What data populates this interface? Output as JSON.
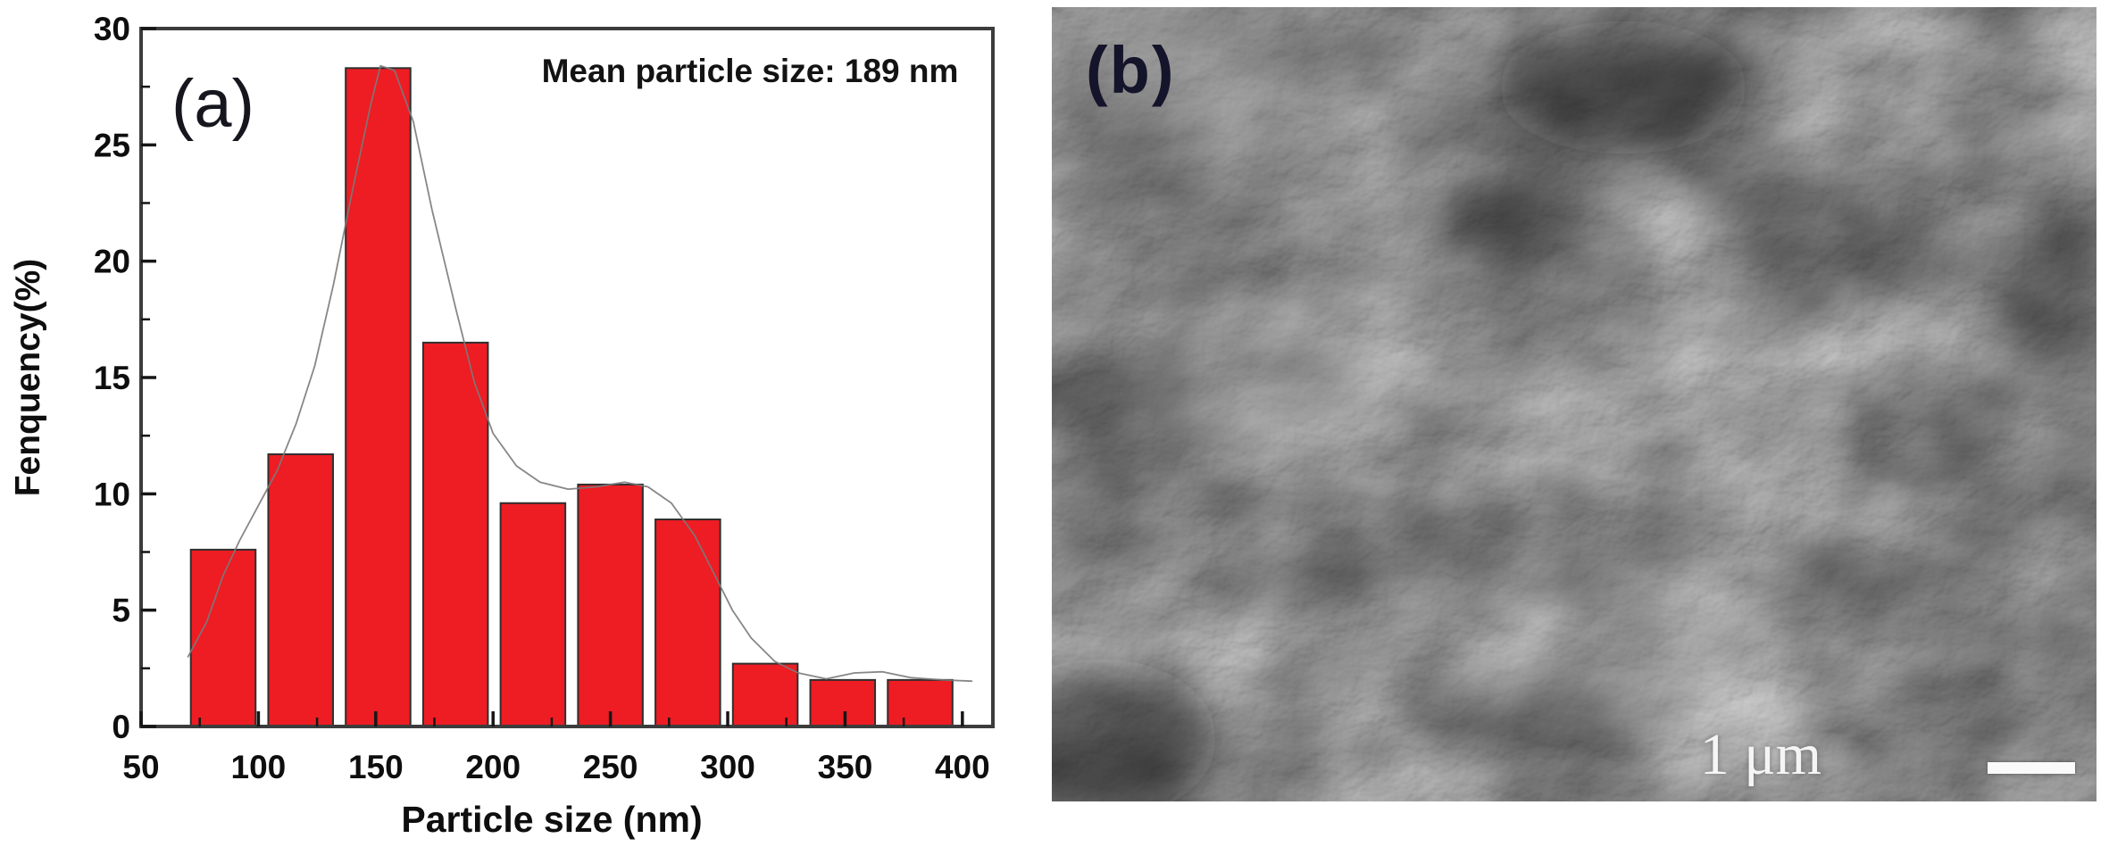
{
  "figure": {
    "panel_a": {
      "label": "(a)",
      "annotation": "Mean particle size: 189 nm",
      "x_axis_title": "Particle size (nm)",
      "y_axis_title": "Fenquency(%)"
    },
    "panel_b": {
      "label": "(b)",
      "scale_text": "1 μm",
      "scale_bar_color": "#fafafa",
      "image_type": "SEM micrograph of agglomerated particles"
    }
  },
  "chart_data": {
    "type": "bar",
    "title": "",
    "xlabel": "Particle size (nm)",
    "ylabel": "Fenquency(%)",
    "annotation": "Mean particle size: 189 nm",
    "xlim": [
      50,
      413
    ],
    "ylim": [
      0,
      30
    ],
    "x_ticks": [
      50,
      100,
      150,
      200,
      250,
      300,
      350,
      400
    ],
    "y_ticks": [
      0,
      5,
      10,
      15,
      20,
      25,
      30
    ],
    "x_minor_step": 25,
    "y_minor_step": 2.5,
    "grid": false,
    "legend": "none",
    "bar_color": "#ee1c23",
    "bar_edge_color": "#2f2f2f",
    "curve_color": "#7a7a7a",
    "axis_color": "#3c3c3c",
    "bin_half_width_nm": 13.8,
    "categories": [
      85,
      118,
      151,
      184,
      217,
      250,
      283,
      316,
      349,
      382
    ],
    "values": [
      7.6,
      11.7,
      28.3,
      16.5,
      9.6,
      10.4,
      8.9,
      2.7,
      2.0,
      2.0
    ],
    "curve_points": [
      [
        70,
        3.0
      ],
      [
        78,
        4.5
      ],
      [
        85,
        6.5
      ],
      [
        92,
        8.0
      ],
      [
        100,
        9.5
      ],
      [
        108,
        11.0
      ],
      [
        116,
        13.0
      ],
      [
        124,
        15.5
      ],
      [
        132,
        19.0
      ],
      [
        140,
        23.0
      ],
      [
        148,
        26.8
      ],
      [
        152,
        28.4
      ],
      [
        158,
        28.2
      ],
      [
        166,
        26.0
      ],
      [
        174,
        22.2
      ],
      [
        184,
        18.0
      ],
      [
        192,
        14.8
      ],
      [
        200,
        12.6
      ],
      [
        210,
        11.2
      ],
      [
        220,
        10.5
      ],
      [
        232,
        10.2
      ],
      [
        244,
        10.3
      ],
      [
        256,
        10.5
      ],
      [
        266,
        10.3
      ],
      [
        276,
        9.6
      ],
      [
        286,
        8.2
      ],
      [
        294,
        6.6
      ],
      [
        302,
        5.0
      ],
      [
        310,
        3.8
      ],
      [
        320,
        2.8
      ],
      [
        330,
        2.3
      ],
      [
        342,
        2.05
      ],
      [
        354,
        2.3
      ],
      [
        366,
        2.35
      ],
      [
        378,
        2.1
      ],
      [
        392,
        2.0
      ],
      [
        404,
        1.95
      ]
    ]
  }
}
